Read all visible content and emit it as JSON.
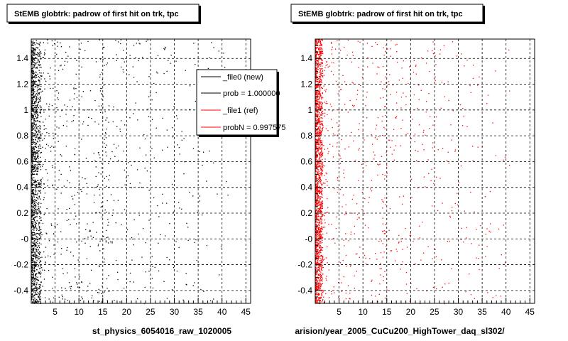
{
  "panels": [
    {
      "title": "StEMB globtrk: padrow of first hit on trk, tpc",
      "footer": "st_physics_6054016_raw_1020005",
      "marker_color": "#000000"
    },
    {
      "title": "StEMB globtrk: padrow of first hit on trk, tpc",
      "footer": "arision/year_2005_CuCu200_HighTower_daq_sl302/",
      "marker_color": "#ff0000"
    }
  ],
  "legend": {
    "entries": [
      {
        "label": "_file0 (new)",
        "color": "#000000"
      },
      {
        "label": "prob = 1.000000",
        "color": "#000000"
      },
      {
        "label": "_file1 (ref)",
        "color": "#ff0000"
      },
      {
        "label": "probN = 0.997575",
        "color": "#ff0000"
      }
    ]
  },
  "corner_note": "",
  "chart_data": [
    {
      "type": "scatter",
      "title": "StEMB globtrk: padrow of first hit on trk, tpc",
      "xlabel": "st_physics_6054016_raw_1020005",
      "ylabel": "",
      "xlim": [
        0,
        46
      ],
      "ylim": [
        -0.5,
        1.55
      ],
      "xticks": [
        5,
        10,
        15,
        20,
        25,
        30,
        35,
        40,
        45
      ],
      "yticks": [
        -0.4,
        -0.2,
        0,
        0.2,
        0.4,
        0.6,
        0.8,
        1,
        1.2,
        1.4
      ],
      "ytick_labels": [
        "-0.4",
        "-0.2",
        "-0",
        "0.2",
        "0.4",
        "0.6",
        "0.8",
        "1",
        "1.2",
        "1.4"
      ],
      "grid": true,
      "series": [
        {
          "name": "_file0 (new)",
          "color": "#000000",
          "dense_x_range": [
            0,
            2
          ],
          "enhanced_columns": [
            14,
            15
          ],
          "density_profile": [
            3.0,
            2.0,
            1.0,
            0.55,
            0.5,
            0.45,
            0.42,
            0.4,
            0.38,
            0.36,
            0.34,
            0.3,
            0.28,
            0.35,
            0.9,
            0.7,
            0.3,
            0.26,
            0.25,
            0.24,
            0.24,
            0.23,
            0.22,
            0.22,
            0.21,
            0.2,
            0.2,
            0.19,
            0.18,
            0.17,
            0.16,
            0.15,
            0.14,
            0.13,
            0.12,
            0.11,
            0.1,
            0.09,
            0.08,
            0.07,
            0.05,
            0.02,
            0.0,
            0.0,
            0.0,
            0.0
          ]
        }
      ]
    },
    {
      "type": "scatter",
      "title": "StEMB globtrk: padrow of first hit on trk, tpc",
      "xlabel": "arision/year_2005_CuCu200_HighTower_daq_sl302/",
      "ylabel": "",
      "xlim": [
        0,
        46
      ],
      "ylim": [
        -0.5,
        1.55
      ],
      "xticks": [
        5,
        10,
        15,
        20,
        25,
        30,
        35,
        40,
        45
      ],
      "yticks": [
        -0.4,
        -0.2,
        0,
        0.2,
        0.4,
        0.6,
        0.8,
        1,
        1.2,
        1.4
      ],
      "ytick_labels": [
        "-0.4",
        "-0.2",
        "-0",
        "0.2",
        "0.4",
        "0.6",
        "0.8",
        "1",
        "1.2",
        "1.4"
      ],
      "grid": true,
      "series": [
        {
          "name": "_file1 (ref)",
          "color": "#ff0000",
          "dense_x_range": [
            0,
            1.5
          ],
          "enhanced_columns": [
            14
          ],
          "density_profile": [
            4.0,
            1.6,
            0.7,
            0.45,
            0.42,
            0.4,
            0.38,
            0.36,
            0.34,
            0.32,
            0.3,
            0.28,
            0.27,
            0.4,
            0.9,
            0.3,
            0.27,
            0.26,
            0.25,
            0.24,
            0.24,
            0.23,
            0.22,
            0.22,
            0.21,
            0.2,
            0.2,
            0.19,
            0.18,
            0.17,
            0.16,
            0.15,
            0.14,
            0.13,
            0.12,
            0.11,
            0.1,
            0.09,
            0.08,
            0.07,
            0.05,
            0.0,
            0.0,
            0.0,
            0.0,
            0.0
          ]
        }
      ]
    }
  ]
}
